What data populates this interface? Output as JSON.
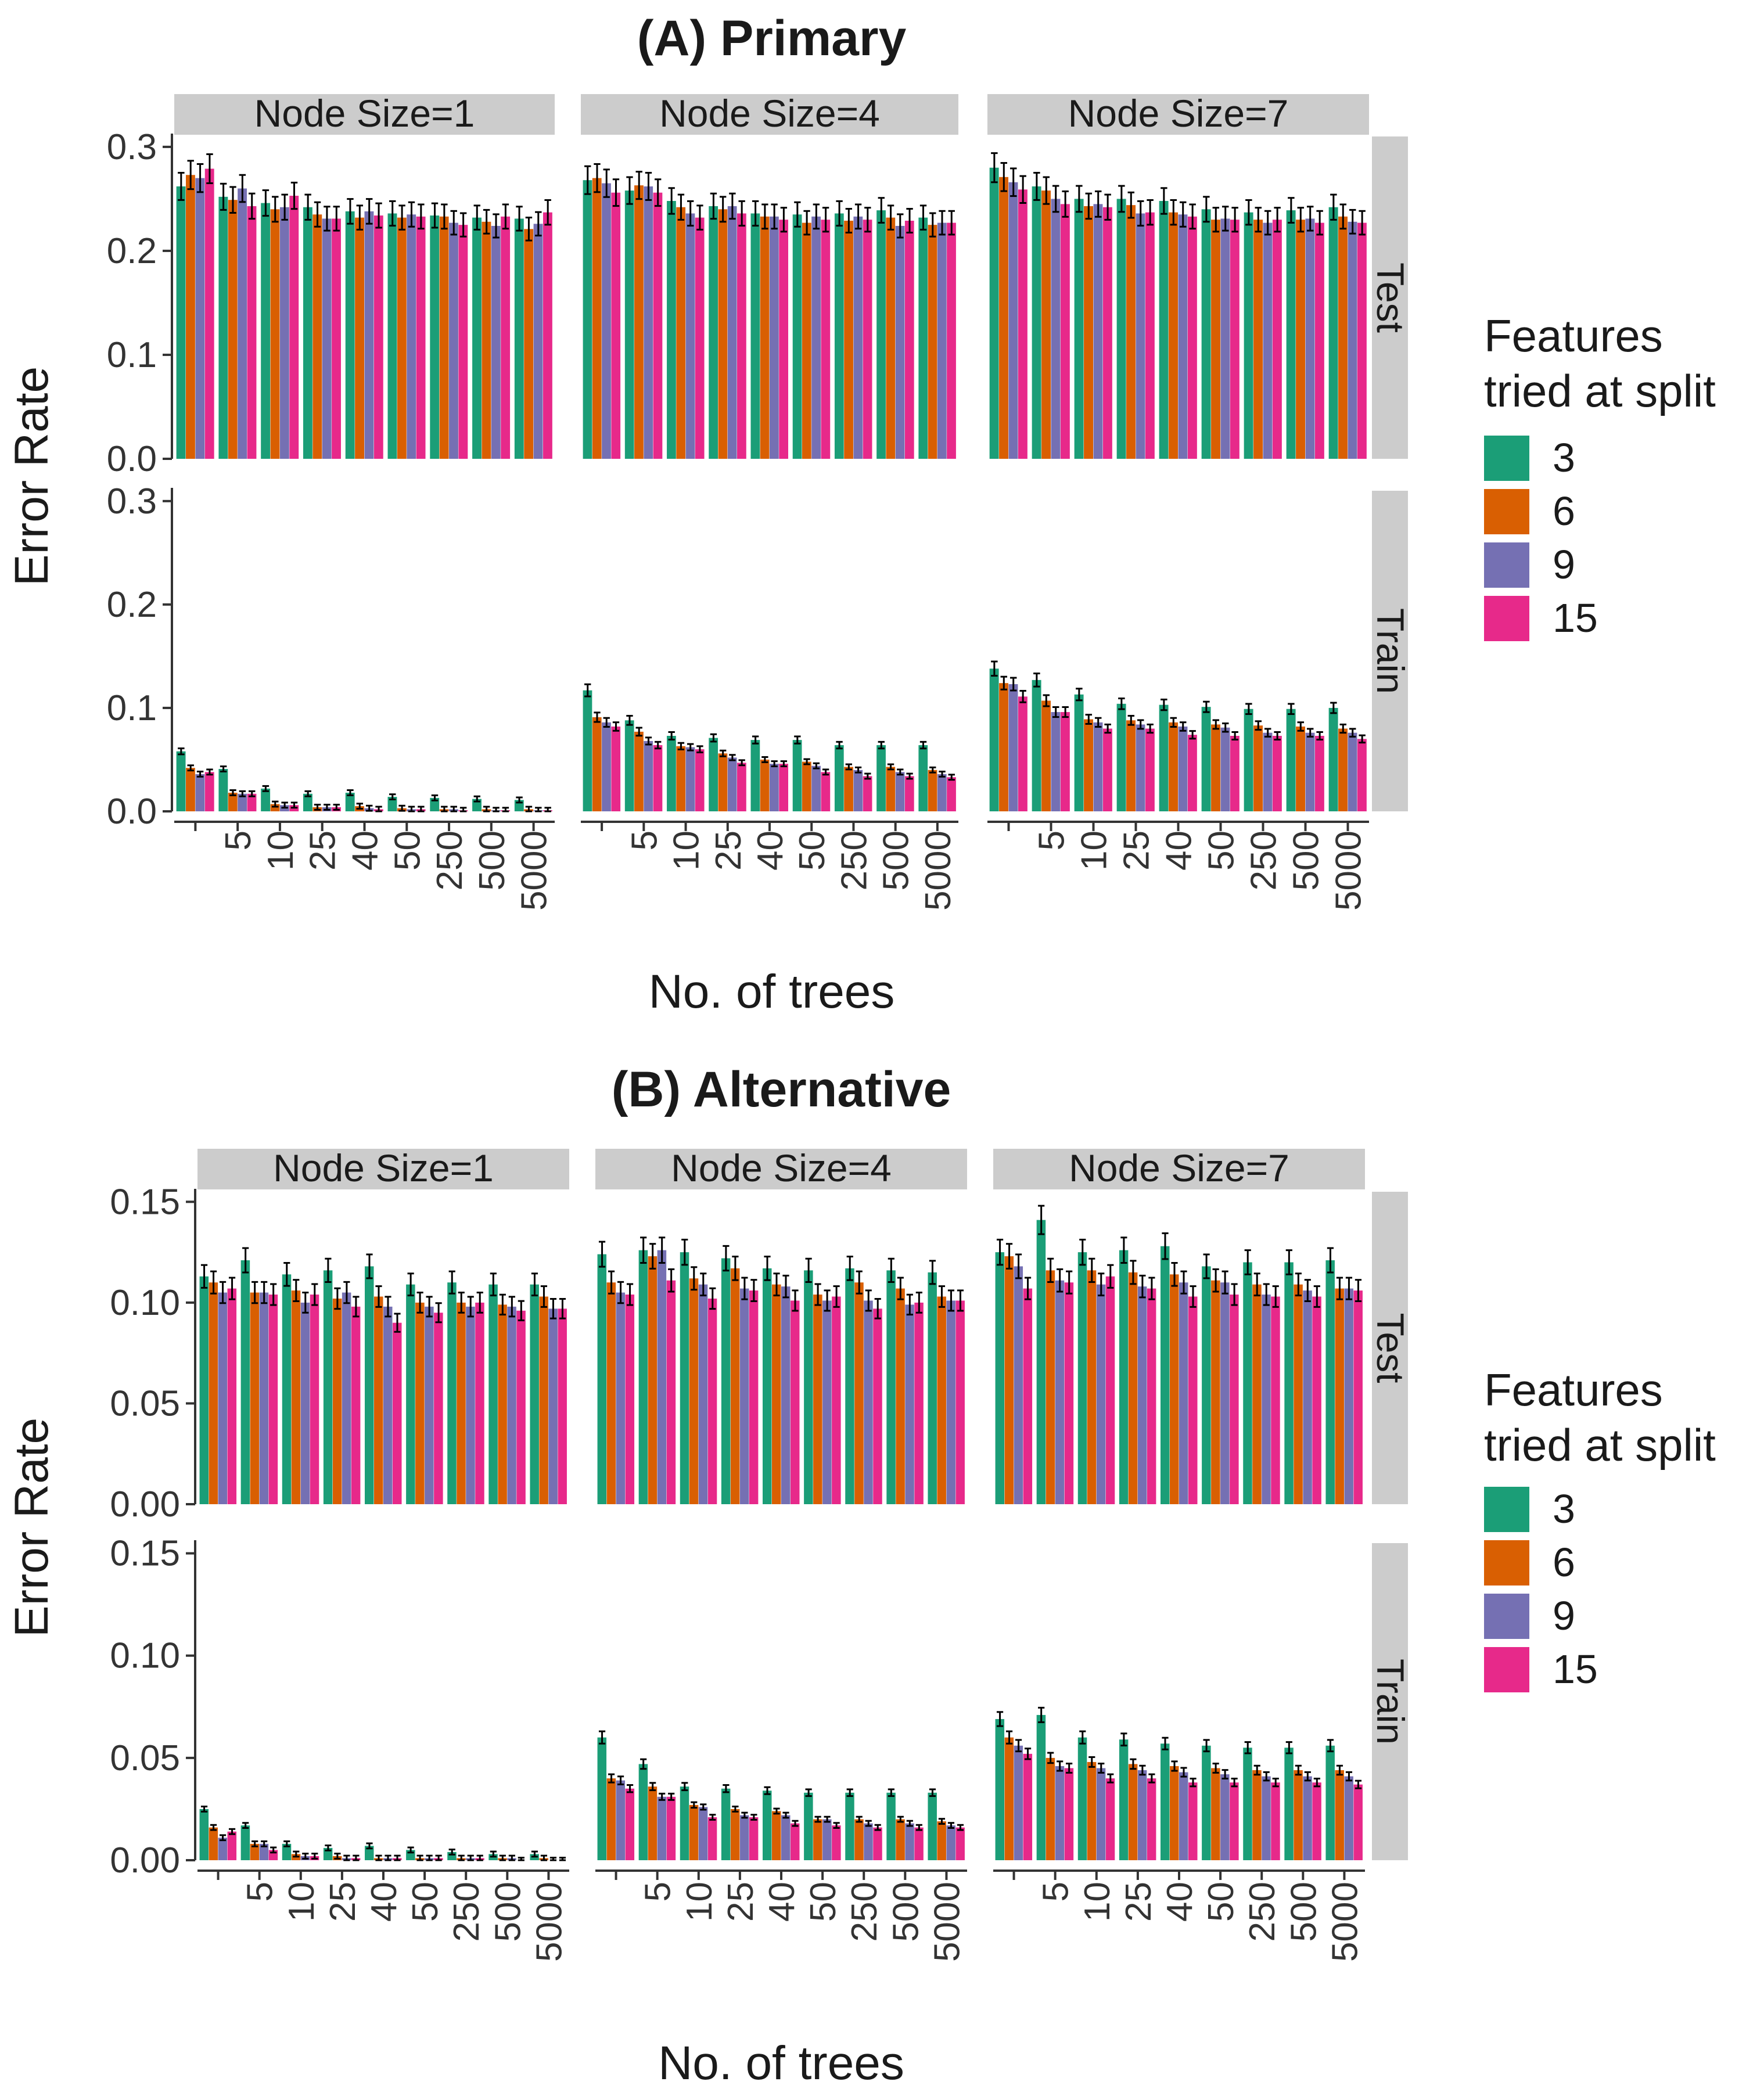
{
  "chart_data": {
    "type": "bar",
    "panels_description": "Faceted grouped bar charts with error bars",
    "legend": {
      "title_line1": "Features",
      "title_line2": "tried at split",
      "entries": [
        {
          "label": "3",
          "color": "#1B9E77"
        },
        {
          "label": "6",
          "color": "#D95F02"
        },
        {
          "label": "9",
          "color": "#7570B3"
        },
        {
          "label": "15",
          "color": "#E7298A"
        }
      ]
    },
    "categories": [
      "",
      "5",
      "10",
      "25",
      "40",
      "50",
      "250",
      "500",
      "5000"
    ],
    "columns": [
      "Node Size=1",
      "Node Size=4",
      "Node Size=7"
    ],
    "rows": [
      "Test",
      "Train"
    ],
    "xlabel": "No. of trees",
    "ylabel": "Error Rate",
    "sections": [
      {
        "title": "(A) Primary",
        "ylim": [
          0,
          0.31
        ],
        "yticks": [
          "0.0",
          "0.1",
          "0.2",
          "0.3"
        ],
        "ytick_values": [
          0,
          0.1,
          0.2,
          0.3
        ],
        "data": {
          "Test": [
            [
              [
                0.262,
                0.273,
                0.27,
                0.279
              ],
              [
                0.252,
                0.249,
                0.26,
                0.243
              ],
              [
                0.246,
                0.24,
                0.242,
                0.253
              ],
              [
                0.242,
                0.235,
                0.231,
                0.231
              ],
              [
                0.238,
                0.232,
                0.238,
                0.234
              ],
              [
                0.236,
                0.232,
                0.235,
                0.233
              ],
              [
                0.234,
                0.233,
                0.227,
                0.225
              ],
              [
                0.232,
                0.228,
                0.224,
                0.233
              ],
              [
                0.231,
                0.221,
                0.226,
                0.237
              ]
            ],
            [
              [
                0.268,
                0.27,
                0.265,
                0.256
              ],
              [
                0.258,
                0.263,
                0.262,
                0.256
              ],
              [
                0.248,
                0.242,
                0.236,
                0.232
              ],
              [
                0.243,
                0.24,
                0.243,
                0.236
              ],
              [
                0.236,
                0.233,
                0.233,
                0.23
              ],
              [
                0.235,
                0.227,
                0.233,
                0.23
              ],
              [
                0.236,
                0.229,
                0.233,
                0.23
              ],
              [
                0.239,
                0.232,
                0.224,
                0.229
              ],
              [
                0.232,
                0.225,
                0.227,
                0.227
              ]
            ],
            [
              [
                0.28,
                0.271,
                0.266,
                0.259
              ],
              [
                0.262,
                0.258,
                0.25,
                0.245
              ],
              [
                0.25,
                0.243,
                0.245,
                0.242
              ],
              [
                0.25,
                0.244,
                0.236,
                0.237
              ],
              [
                0.248,
                0.237,
                0.235,
                0.233
              ],
              [
                0.24,
                0.23,
                0.231,
                0.23
              ],
              [
                0.237,
                0.23,
                0.227,
                0.23
              ],
              [
                0.239,
                0.23,
                0.231,
                0.227
              ],
              [
                0.242,
                0.233,
                0.228,
                0.227
              ]
            ]
          ],
          "Train": [
            [
              [
                0.058,
                0.042,
                0.036,
                0.038
              ],
              [
                0.041,
                0.018,
                0.017,
                0.017
              ],
              [
                0.022,
                0.007,
                0.006,
                0.006
              ],
              [
                0.017,
                0.004,
                0.004,
                0.004
              ],
              [
                0.018,
                0.005,
                0.003,
                0.002
              ],
              [
                0.014,
                0.003,
                0.002,
                0.002
              ],
              [
                0.013,
                0.002,
                0.002,
                0.001
              ],
              [
                0.012,
                0.002,
                0.001,
                0.001
              ],
              [
                0.011,
                0.002,
                0.001,
                0.001
              ]
            ],
            [
              [
                0.117,
                0.091,
                0.086,
                0.082
              ],
              [
                0.088,
                0.077,
                0.068,
                0.064
              ],
              [
                0.073,
                0.063,
                0.062,
                0.06
              ],
              [
                0.071,
                0.056,
                0.052,
                0.047
              ],
              [
                0.069,
                0.05,
                0.046,
                0.046
              ],
              [
                0.069,
                0.048,
                0.044,
                0.038
              ],
              [
                0.064,
                0.043,
                0.04,
                0.034
              ],
              [
                0.064,
                0.043,
                0.038,
                0.034
              ],
              [
                0.064,
                0.04,
                0.036,
                0.033
              ]
            ],
            [
              [
                0.138,
                0.124,
                0.123,
                0.111
              ],
              [
                0.127,
                0.107,
                0.096,
                0.096
              ],
              [
                0.113,
                0.089,
                0.086,
                0.08
              ],
              [
                0.104,
                0.088,
                0.084,
                0.08
              ],
              [
                0.103,
                0.086,
                0.082,
                0.074
              ],
              [
                0.101,
                0.084,
                0.081,
                0.073
              ],
              [
                0.099,
                0.083,
                0.076,
                0.073
              ],
              [
                0.099,
                0.082,
                0.076,
                0.073
              ],
              [
                0.1,
                0.08,
                0.076,
                0.07
              ]
            ]
          ]
        }
      },
      {
        "title": "(B) Alternative",
        "ylim": [
          0,
          0.155
        ],
        "yticks": [
          "0.00",
          "0.05",
          "0.10",
          "0.15"
        ],
        "ytick_values": [
          0,
          0.05,
          0.1,
          0.15
        ],
        "data": {
          "Test": [
            [
              [
                0.113,
                0.11,
                0.105,
                0.107
              ],
              [
                0.121,
                0.105,
                0.105,
                0.104
              ],
              [
                0.114,
                0.106,
                0.1,
                0.104
              ],
              [
                0.116,
                0.102,
                0.105,
                0.098
              ],
              [
                0.118,
                0.103,
                0.098,
                0.09
              ],
              [
                0.109,
                0.1,
                0.098,
                0.095
              ],
              [
                0.11,
                0.1,
                0.098,
                0.1
              ],
              [
                0.109,
                0.099,
                0.098,
                0.096
              ],
              [
                0.109,
                0.103,
                0.097,
                0.097
              ]
            ],
            [
              [
                0.124,
                0.11,
                0.105,
                0.104
              ],
              [
                0.126,
                0.123,
                0.126,
                0.111
              ],
              [
                0.125,
                0.112,
                0.109,
                0.102
              ],
              [
                0.122,
                0.117,
                0.107,
                0.106
              ],
              [
                0.117,
                0.109,
                0.108,
                0.101
              ],
              [
                0.116,
                0.104,
                0.101,
                0.103
              ],
              [
                0.117,
                0.11,
                0.101,
                0.097
              ],
              [
                0.116,
                0.107,
                0.099,
                0.1
              ],
              [
                0.115,
                0.103,
                0.101,
                0.101
              ]
            ],
            [
              [
                0.125,
                0.123,
                0.118,
                0.107
              ],
              [
                0.141,
                0.116,
                0.111,
                0.11
              ],
              [
                0.125,
                0.116,
                0.109,
                0.113
              ],
              [
                0.126,
                0.115,
                0.108,
                0.107
              ],
              [
                0.128,
                0.114,
                0.11,
                0.103
              ],
              [
                0.118,
                0.111,
                0.11,
                0.104
              ],
              [
                0.12,
                0.109,
                0.104,
                0.103
              ],
              [
                0.12,
                0.109,
                0.106,
                0.103
              ],
              [
                0.121,
                0.107,
                0.107,
                0.106
              ]
            ]
          ],
          "Train": [
            [
              [
                0.025,
                0.016,
                0.011,
                0.014
              ],
              [
                0.017,
                0.008,
                0.008,
                0.005
              ],
              [
                0.008,
                0.003,
                0.002,
                0.002
              ],
              [
                0.006,
                0.002,
                0.001,
                0.001
              ],
              [
                0.007,
                0.001,
                0.001,
                0.001
              ],
              [
                0.005,
                0.001,
                0.001,
                0.001
              ],
              [
                0.004,
                0.001,
                0.001,
                0.001
              ],
              [
                0.003,
                0.001,
                0.001,
                0.0
              ],
              [
                0.003,
                0.001,
                0.0,
                0.0
              ]
            ],
            [
              [
                0.06,
                0.04,
                0.039,
                0.035
              ],
              [
                0.047,
                0.036,
                0.031,
                0.031
              ],
              [
                0.036,
                0.027,
                0.026,
                0.021
              ],
              [
                0.035,
                0.025,
                0.022,
                0.021
              ],
              [
                0.034,
                0.024,
                0.022,
                0.018
              ],
              [
                0.033,
                0.02,
                0.02,
                0.017
              ],
              [
                0.033,
                0.02,
                0.018,
                0.016
              ],
              [
                0.033,
                0.02,
                0.018,
                0.016
              ],
              [
                0.033,
                0.019,
                0.017,
                0.016
              ]
            ],
            [
              [
                0.069,
                0.06,
                0.056,
                0.052
              ],
              [
                0.071,
                0.05,
                0.046,
                0.045
              ],
              [
                0.06,
                0.048,
                0.045,
                0.04
              ],
              [
                0.059,
                0.047,
                0.044,
                0.04
              ],
              [
                0.057,
                0.046,
                0.043,
                0.038
              ],
              [
                0.056,
                0.045,
                0.042,
                0.038
              ],
              [
                0.055,
                0.044,
                0.041,
                0.038
              ],
              [
                0.055,
                0.044,
                0.041,
                0.038
              ],
              [
                0.056,
                0.044,
                0.041,
                0.037
              ]
            ]
          ]
        }
      }
    ]
  }
}
